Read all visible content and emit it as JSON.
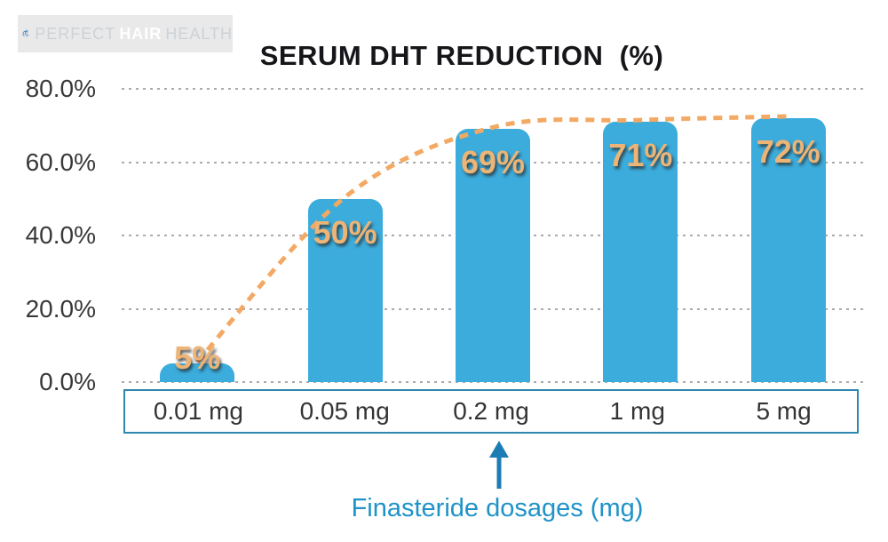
{
  "logo": {
    "brand_part1": "PERFECT",
    "brand_part2": "HAIR",
    "brand_part3": "HEALTH"
  },
  "title": "SERUM DHT REDUCTION  (%)",
  "chart_data": {
    "type": "bar",
    "title": "SERUM DHT REDUCTION (%)",
    "categories": [
      "0.01 mg",
      "0.05 mg",
      "0.2 mg",
      "1 mg",
      "5 mg"
    ],
    "values": [
      5,
      50,
      69,
      71,
      72
    ],
    "value_labels": [
      "5%",
      "50%",
      "69%",
      "71%",
      "72%"
    ],
    "xlabel": "Finasteride dosages (mg)",
    "ylabel": "",
    "ylim": [
      0,
      80
    ],
    "ytick_values": [
      80,
      60,
      40,
      20,
      0
    ],
    "yticks": [
      "80.0%",
      "60.0%",
      "40.0%",
      "20.0%",
      "0.0%"
    ],
    "grid": true,
    "legend": "none",
    "trendline": "dashed curve through bar tops",
    "colors": {
      "bar": "#3bacdc",
      "trend": "#f3a963",
      "value_label": "#edb475",
      "axis_box_border": "#2e87b0",
      "arrow": "#1c7db5",
      "caption": "#1f93c8",
      "grid": "#ababab"
    }
  },
  "caption": {
    "text": "Finasteride dosages (mg)"
  }
}
